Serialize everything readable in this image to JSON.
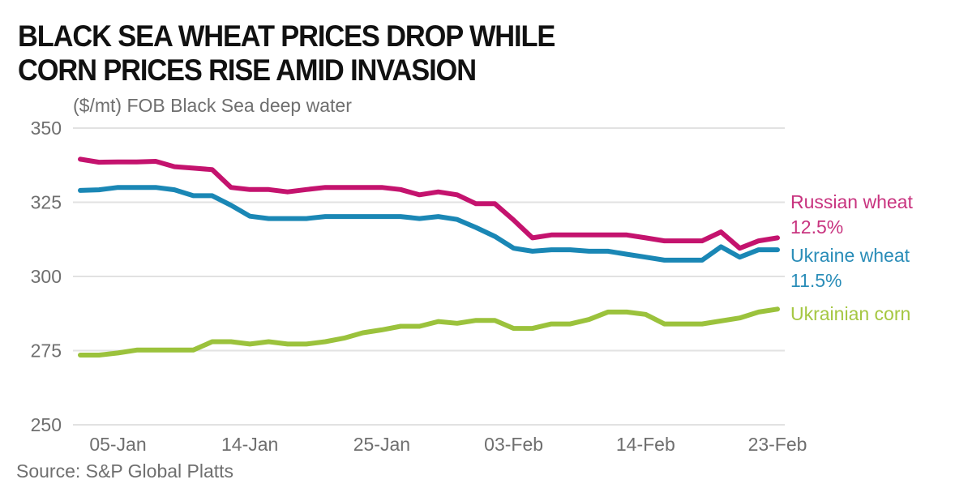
{
  "title_lines": [
    "BLACK SEA WHEAT PRICES DROP WHILE",
    "CORN PRICES RISE AMID INVASION"
  ],
  "subtitle": "($/mt) FOB Black Sea deep water",
  "source": "Source: S&P Global Platts",
  "chart_data": {
    "type": "line",
    "title": "BLACK SEA WHEAT PRICES DROP WHILE CORN PRICES RISE AMID INVASION",
    "subtitle": "($/mt) FOB Black Sea deep water",
    "xlabel": "",
    "ylabel": "($/mt) FOB Black Sea deep water",
    "ylim": [
      250,
      350
    ],
    "yticks": [
      350,
      325,
      300,
      275,
      250
    ],
    "grid": true,
    "legend": "right, inline labels at line ends",
    "x_tick_labels": [
      {
        "label": "05-Jan",
        "index": 2
      },
      {
        "label": "14-Jan",
        "index": 9
      },
      {
        "label": "25-Jan",
        "index": 16
      },
      {
        "label": "03-Feb",
        "index": 23
      },
      {
        "label": "14-Feb",
        "index": 30
      },
      {
        "label": "23-Feb",
        "index": 37
      }
    ],
    "n_points": 38,
    "series": [
      {
        "name": "Russian wheat 12.5%",
        "label_lines": [
          "Russian wheat",
          "12.5%"
        ],
        "color": "#c4136e",
        "label_color": "#c8337f",
        "values": [
          339.5,
          338.5,
          338.6,
          338.6,
          338.8,
          337.0,
          336.5,
          336.0,
          330.0,
          329.3,
          329.3,
          328.5,
          329.3,
          330.0,
          330.0,
          330.0,
          330.0,
          329.3,
          327.5,
          328.5,
          327.5,
          324.5,
          324.5,
          319.0,
          313.0,
          314.0,
          314.0,
          314.0,
          314.0,
          314.0,
          313.0,
          312.0,
          312.0,
          312.0,
          315.0,
          309.5,
          312.0,
          313.0
        ]
      },
      {
        "name": "Ukraine wheat 11.5%",
        "label_lines": [
          "Ukraine wheat",
          "11.5%"
        ],
        "color": "#1a87b5",
        "label_color": "#2a8db8",
        "values": [
          329.0,
          329.2,
          330.0,
          330.0,
          330.0,
          329.2,
          327.2,
          327.2,
          324.0,
          320.3,
          319.5,
          319.5,
          319.5,
          320.2,
          320.2,
          320.2,
          320.2,
          320.2,
          319.5,
          320.2,
          319.2,
          316.5,
          313.5,
          309.5,
          308.5,
          309.0,
          309.0,
          308.5,
          308.5,
          307.5,
          306.5,
          305.5,
          305.5,
          305.5,
          310.0,
          306.5,
          309.0,
          309.0
        ]
      },
      {
        "name": "Ukrainian corn",
        "label_lines": [
          "Ukrainian corn"
        ],
        "color": "#9bc23c",
        "label_color": "#a5c742",
        "values": [
          273.5,
          273.5,
          274.2,
          275.2,
          275.2,
          275.2,
          275.2,
          278.0,
          278.0,
          277.2,
          278.0,
          277.2,
          277.2,
          278.0,
          279.2,
          281.0,
          282.0,
          283.2,
          283.2,
          284.8,
          284.2,
          285.2,
          285.2,
          282.5,
          282.5,
          284.0,
          284.0,
          285.5,
          288.0,
          288.0,
          287.2,
          284.0,
          284.0,
          284.0,
          285.0,
          286.0,
          288.0,
          289.0
        ]
      }
    ]
  }
}
